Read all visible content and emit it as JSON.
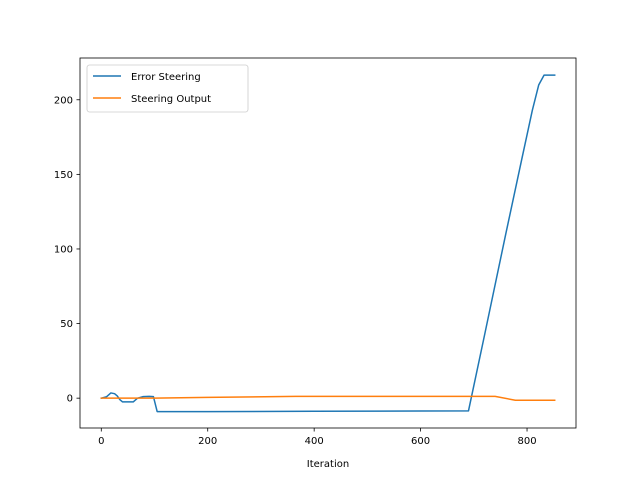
{
  "chart_data": {
    "type": "line",
    "title": "",
    "xlabel": "Iteration",
    "ylabel": "",
    "xlim": [
      -40,
      892
    ],
    "ylim": [
      -20,
      228
    ],
    "xticks": [
      0,
      200,
      400,
      600,
      800
    ],
    "yticks": [
      0,
      50,
      100,
      150,
      200
    ],
    "grid": false,
    "legend_position": "top-left",
    "series": [
      {
        "name": "Error Steering",
        "color": "#1f77b4",
        "points": [
          [
            0,
            0
          ],
          [
            10,
            1
          ],
          [
            18,
            3.5
          ],
          [
            25,
            3
          ],
          [
            30,
            1.5
          ],
          [
            35,
            -1
          ],
          [
            40,
            -2.5
          ],
          [
            50,
            -2.5
          ],
          [
            60,
            -2.5
          ],
          [
            68,
            0
          ],
          [
            78,
            1
          ],
          [
            90,
            1.2
          ],
          [
            98,
            1
          ],
          [
            105,
            -9
          ],
          [
            200,
            -9
          ],
          [
            400,
            -8.8
          ],
          [
            600,
            -8.6
          ],
          [
            690,
            -8.5
          ],
          [
            720,
            42
          ],
          [
            760,
            110
          ],
          [
            790,
            160
          ],
          [
            810,
            193
          ],
          [
            822,
            210
          ],
          [
            832,
            216.5
          ],
          [
            842,
            216.5
          ],
          [
            852,
            216.5
          ]
        ]
      },
      {
        "name": "Steering Output",
        "color": "#ff7f0e",
        "points": [
          [
            0,
            0
          ],
          [
            50,
            0
          ],
          [
            100,
            0
          ],
          [
            200,
            0.5
          ],
          [
            365,
            1.2
          ],
          [
            500,
            1.2
          ],
          [
            700,
            1.2
          ],
          [
            740,
            1.2
          ],
          [
            778,
            -1.4
          ],
          [
            852,
            -1.4
          ]
        ]
      }
    ]
  }
}
